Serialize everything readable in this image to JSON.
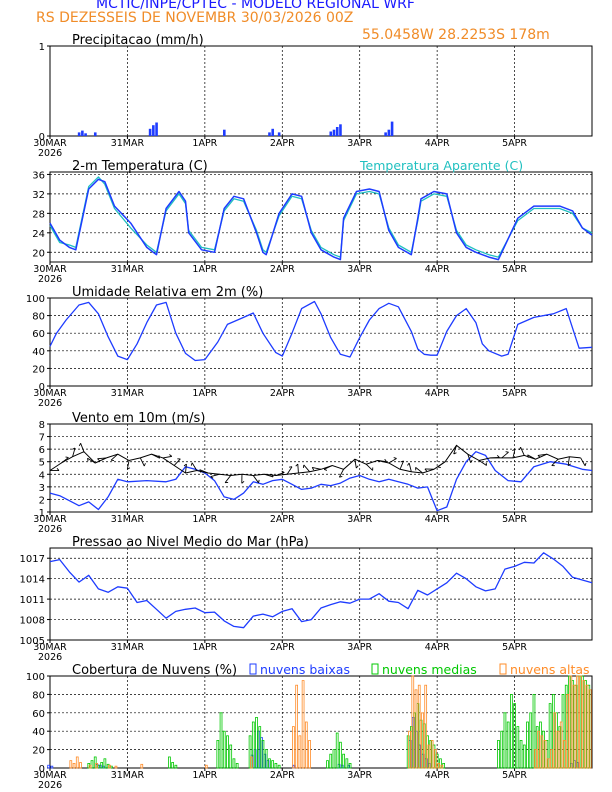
{
  "header": {
    "title": "MCTIC/INPE/CPTEC - MODELO REGIONAL WRF",
    "location_run": "RS DEZESSEIS DE NOVEMBR    30/03/2026 00Z",
    "coords": "55.0458W  28.2253S  178m"
  },
  "colors": {
    "blue": "#1e3cff",
    "cyan": "#20c0c0",
    "black": "#000000",
    "green": "#00c800",
    "orange": "#ff8c28",
    "title_blue": "#1a1aff",
    "title_orange": "#f08c28"
  },
  "x_axis": {
    "ticks": [
      "30MAR",
      "31MAR",
      "1APR",
      "2APR",
      "3APR",
      "4APR",
      "5APR"
    ],
    "year": "2026",
    "hours_total": 168
  },
  "chart_data": [
    {
      "type": "bar",
      "title": "Precipitacao (mm/h)",
      "ylim": [
        0,
        1
      ],
      "yticks": [
        0,
        1
      ],
      "x_hours": [
        9,
        10,
        11,
        14,
        31,
        32,
        33,
        54,
        68,
        69,
        71,
        87,
        88,
        89,
        90,
        104,
        105,
        106
      ],
      "values": [
        0.04,
        0.06,
        0.03,
        0.04,
        0.08,
        0.12,
        0.15,
        0.07,
        0.04,
        0.08,
        0.04,
        0.05,
        0.07,
        0.1,
        0.13,
        0.04,
        0.07,
        0.16
      ]
    },
    {
      "type": "line",
      "title": "2-m Temperatura (C)",
      "legend": "Temperatura Aparente (C)",
      "ylim": [
        18,
        36.5
      ],
      "yticks": [
        20,
        24,
        28,
        32,
        36
      ],
      "series": [
        {
          "name": "Temperatura",
          "x": [
            0,
            3,
            6,
            8,
            12,
            15,
            17,
            20,
            25,
            30,
            33,
            36,
            40,
            42,
            43,
            47,
            51,
            54,
            57,
            60,
            64,
            66,
            67,
            71,
            75,
            78,
            81,
            84,
            88,
            90,
            91,
            95,
            99,
            102,
            105,
            108,
            112,
            114,
            115,
            119,
            123,
            126,
            129,
            132,
            136,
            139,
            145,
            150,
            158,
            162,
            165,
            168
          ],
          "y": [
            26,
            22.5,
            21,
            20.5,
            33,
            35,
            34.5,
            29.5,
            26,
            21,
            19.5,
            29,
            32.5,
            30.5,
            24,
            20.5,
            20,
            29,
            31.5,
            31,
            24,
            20,
            19.5,
            28,
            32,
            31.5,
            24,
            20.5,
            19,
            18.5,
            27,
            32.5,
            33,
            32.5,
            24.5,
            21,
            19.5,
            27,
            31,
            32.5,
            32,
            24,
            21,
            20,
            19,
            18.5,
            27,
            29.5,
            29.5,
            28.5,
            25,
            23.5
          ]
        },
        {
          "name": "Temperatura Aparente",
          "x": [
            0,
            3,
            6,
            8,
            12,
            15,
            17,
            20,
            25,
            30,
            33,
            36,
            40,
            42,
            43,
            47,
            51,
            54,
            57,
            60,
            64,
            66,
            67,
            71,
            75,
            78,
            81,
            84,
            88,
            90,
            91,
            95,
            99,
            102,
            105,
            108,
            112,
            114,
            115,
            119,
            123,
            126,
            129,
            132,
            136,
            139,
            145,
            150,
            158,
            162,
            165,
            168
          ],
          "y": [
            25.5,
            22,
            21.5,
            21,
            33.5,
            35.5,
            34,
            29,
            25,
            21.5,
            20,
            28.5,
            32,
            30,
            24.5,
            21,
            20.5,
            28.5,
            31,
            30.5,
            24.5,
            20.5,
            20,
            27.5,
            31.5,
            31,
            24.5,
            21,
            19.5,
            19,
            26.5,
            32,
            32.5,
            32,
            25,
            21.5,
            20,
            26.5,
            30.5,
            32,
            31.5,
            24.5,
            21.5,
            20.5,
            19.5,
            19,
            26.5,
            29,
            29,
            28,
            25,
            24
          ]
        }
      ]
    },
    {
      "type": "line",
      "title": "Umidade Relativa em 2m (%)",
      "ylim": [
        0,
        100
      ],
      "yticks": [
        0,
        20,
        40,
        60,
        80,
        100
      ],
      "series": [
        {
          "name": "Umidade Relativa",
          "x": [
            0,
            2,
            5,
            9,
            12,
            15,
            18,
            21,
            24,
            27,
            30,
            33,
            36,
            39,
            42,
            45,
            48,
            52,
            55,
            60,
            63,
            66,
            70,
            72,
            75,
            78,
            82,
            84,
            87,
            90,
            93,
            96,
            99,
            102,
            105,
            108,
            112,
            114,
            116,
            118,
            120,
            123,
            126,
            129,
            132,
            134,
            136,
            140,
            142,
            145,
            150,
            156,
            160,
            164,
            168
          ],
          "y": [
            45,
            60,
            75,
            92,
            95,
            82,
            56,
            34,
            30,
            48,
            72,
            92,
            95,
            60,
            37,
            29,
            30,
            50,
            70,
            78,
            83,
            60,
            38,
            34,
            60,
            88,
            96,
            82,
            55,
            36,
            33,
            55,
            75,
            88,
            94,
            90,
            62,
            42,
            36,
            35,
            35,
            62,
            80,
            88,
            72,
            48,
            40,
            34,
            36,
            70,
            78,
            82,
            88,
            43,
            44
          ]
        }
      ]
    },
    {
      "type": "line",
      "title": "Vento em 10m (m/s)",
      "ylim": [
        1,
        8
      ],
      "yticks": [
        1,
        2,
        3,
        4,
        5,
        6,
        7,
        8
      ],
      "series": [
        {
          "name": "Vento",
          "x": [
            0,
            3,
            6,
            9,
            12,
            15,
            18,
            21,
            24,
            30,
            36,
            39,
            42,
            45,
            48,
            51,
            54,
            57,
            60,
            63,
            66,
            69,
            72,
            75,
            78,
            81,
            84,
            87,
            90,
            93,
            96,
            99,
            102,
            105,
            108,
            111,
            114,
            117,
            120,
            123,
            126,
            129,
            132,
            135,
            138,
            142,
            146,
            150,
            155,
            160,
            165,
            168
          ],
          "y": [
            2.5,
            2.3,
            1.9,
            1.5,
            1.8,
            1.2,
            2.2,
            3.6,
            3.4,
            3.5,
            3.4,
            3.6,
            4.6,
            4.4,
            4.1,
            3.5,
            2.2,
            2,
            2.5,
            3.4,
            3.2,
            3.5,
            3.6,
            3.2,
            2.8,
            2.9,
            3.2,
            3.1,
            3.3,
            3.7,
            3.9,
            3.6,
            3.4,
            3.6,
            3.4,
            3.2,
            2.9,
            3,
            1.1,
            1.4,
            3.6,
            5,
            5.8,
            5.5,
            4.3,
            3.5,
            3.4,
            4.6,
            5,
            4.8,
            4.4,
            4.3
          ]
        }
      ],
      "barbs_y": [
        4.3,
        4.9,
        5.4,
        5.8,
        4.9,
        5.3,
        5.6,
        5.1,
        5.3,
        5.6,
        5.3,
        4.7,
        4.1,
        4.3,
        4.1,
        4.0,
        3.9,
        4.0,
        3.9,
        4.0,
        3.9,
        4.0,
        4.1,
        4.2,
        4.4,
        4.7,
        4.4,
        5.2,
        4.8,
        5.1,
        4.9,
        4.4,
        4.2,
        4.1,
        4.4,
        5.0,
        6.3,
        5.6,
        5.1,
        5.3,
        5.3,
        5.3,
        5.5,
        5.2,
        5.6,
        5.2,
        5.4,
        5.3
      ]
    },
    {
      "type": "line",
      "title": "Pressao ao Nivel Medio do Mar (hPa)",
      "ylim": [
        1005,
        1018.5
      ],
      "yticks": [
        1005,
        1008,
        1011,
        1014,
        1017
      ],
      "series": [
        {
          "name": "Pressao",
          "x": [
            0,
            3,
            6,
            9,
            12,
            15,
            18,
            21,
            24,
            27,
            30,
            33,
            36,
            39,
            42,
            45,
            48,
            51,
            54,
            57,
            60,
            63,
            66,
            69,
            72,
            75,
            78,
            81,
            84,
            87,
            90,
            93,
            96,
            99,
            102,
            105,
            108,
            111,
            114,
            117,
            120,
            123,
            126,
            129,
            132,
            135,
            138,
            141,
            144,
            147,
            150,
            153,
            156,
            159,
            162,
            165,
            168
          ],
          "y": [
            1016.5,
            1016.8,
            1015,
            1013.5,
            1014.5,
            1012.5,
            1012,
            1012.8,
            1012.6,
            1010.5,
            1010.8,
            1009.5,
            1008.2,
            1009.2,
            1009.5,
            1009.7,
            1009,
            1009.1,
            1007.8,
            1007,
            1006.8,
            1008.5,
            1008.8,
            1008.4,
            1009.2,
            1009.6,
            1007.7,
            1008,
            1009.7,
            1010.2,
            1010.6,
            1010.4,
            1011,
            1011,
            1011.8,
            1010.7,
            1010.5,
            1009.6,
            1012.3,
            1011.6,
            1012.5,
            1013.4,
            1014.8,
            1014,
            1012.8,
            1012.2,
            1012.5,
            1015.4,
            1015.8,
            1016.4,
            1016.3,
            1017.8,
            1016.9,
            1015.8,
            1014.2,
            1013.8,
            1013.4
          ]
        }
      ]
    },
    {
      "type": "bar",
      "title": "Cobertura de Nuvens (%)",
      "legend": [
        "nuvens baixas",
        "nuvens medias",
        "nuvens altas"
      ],
      "ylim": [
        0,
        100
      ],
      "yticks": [
        0,
        20,
        40,
        60,
        80,
        100
      ],
      "series": [
        {
          "name": "nuvens baixas",
          "x": [
            0,
            1,
            15,
            16,
            17,
            63,
            64,
            65,
            66,
            67,
            68,
            76,
            90,
            91,
            93,
            112,
            113,
            114,
            115,
            116,
            117,
            118,
            162,
            163,
            164
          ],
          "y": [
            3,
            2,
            4,
            3,
            2,
            14,
            20,
            40,
            33,
            15,
            8,
            3,
            4,
            3,
            3,
            30,
            55,
            40,
            25,
            15,
            10,
            5,
            5,
            8,
            6
          ]
        },
        {
          "name": "nuvens medias",
          "x": [
            12,
            13,
            14,
            15,
            16,
            17,
            18,
            19,
            37,
            38,
            39,
            52,
            53,
            54,
            55,
            56,
            57,
            58,
            62,
            63,
            64,
            65,
            66,
            67,
            68,
            69,
            70,
            71,
            72,
            73,
            86,
            87,
            88,
            89,
            90,
            91,
            92,
            93,
            111,
            112,
            113,
            114,
            115,
            116,
            117,
            118,
            119,
            120,
            121,
            122,
            123,
            124,
            125,
            126,
            127,
            128,
            129,
            130,
            131,
            132,
            133,
            134,
            135,
            136,
            137,
            138,
            139,
            140,
            141,
            142,
            143,
            144,
            145,
            146,
            147,
            148,
            149,
            150,
            151,
            152,
            153,
            154,
            155,
            156,
            157,
            158,
            159,
            160,
            161,
            162,
            163,
            164,
            165,
            166,
            167
          ],
          "y": [
            5,
            8,
            12,
            3,
            6,
            10,
            4,
            2,
            12,
            6,
            3,
            30,
            60,
            40,
            35,
            25,
            10,
            5,
            35,
            50,
            55,
            45,
            30,
            20,
            10,
            8,
            5,
            3,
            0,
            0,
            8,
            15,
            20,
            38,
            28,
            15,
            10,
            5,
            35,
            45,
            60,
            70,
            52,
            48,
            35,
            30,
            25,
            15,
            10,
            5,
            0,
            0,
            0,
            0,
            0,
            0,
            0,
            0,
            0,
            0,
            0,
            0,
            0,
            0,
            0,
            0,
            30,
            40,
            60,
            50,
            80,
            70,
            45,
            30,
            25,
            50,
            60,
            80,
            45,
            50,
            40,
            30,
            70,
            80,
            60,
            45,
            80,
            90,
            100,
            95,
            90,
            100,
            100,
            95,
            90
          ]
        },
        {
          "name": "nuvens altas",
          "x": [
            6,
            7,
            8,
            9,
            12,
            14,
            18,
            20,
            28,
            48,
            62,
            75,
            76,
            77,
            78,
            79,
            80,
            111,
            112,
            113,
            114,
            115,
            116,
            117,
            118,
            119,
            120,
            121,
            150,
            151,
            152,
            153,
            154,
            155,
            156,
            157,
            158,
            159,
            160,
            161,
            162,
            163,
            164,
            165,
            166,
            167
          ],
          "y": [
            8,
            5,
            12,
            6,
            3,
            5,
            3,
            2,
            4,
            3,
            12,
            45,
            90,
            35,
            95,
            50,
            30,
            40,
            100,
            85,
            90,
            60,
            90,
            25,
            30,
            20,
            5,
            3,
            20,
            40,
            35,
            30,
            10,
            20,
            60,
            40,
            50,
            30,
            80,
            100,
            90,
            100,
            100,
            95,
            90,
            85
          ]
        }
      ]
    }
  ]
}
